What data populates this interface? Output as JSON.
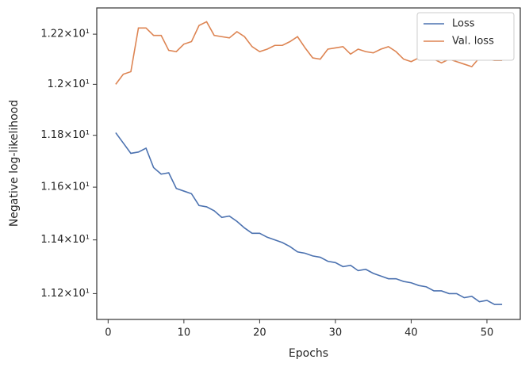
{
  "chart_data": {
    "type": "line",
    "xlabel": "Epochs",
    "ylabel": "Negative log-likelihood",
    "x": [
      1,
      2,
      3,
      4,
      5,
      6,
      7,
      8,
      9,
      10,
      11,
      12,
      13,
      14,
      15,
      16,
      17,
      18,
      19,
      20,
      21,
      22,
      23,
      24,
      25,
      26,
      27,
      28,
      29,
      30,
      31,
      32,
      33,
      34,
      35,
      36,
      37,
      38,
      39,
      40,
      41,
      42,
      43,
      44,
      45,
      46,
      47,
      48,
      49,
      50,
      51,
      52
    ],
    "series": [
      {
        "name": "Loss",
        "color": "#4c72b0",
        "values": [
          11.81,
          11.77,
          11.73,
          11.735,
          11.75,
          11.675,
          11.65,
          11.655,
          11.595,
          11.585,
          11.575,
          11.53,
          11.525,
          11.51,
          11.485,
          11.49,
          11.47,
          11.445,
          11.425,
          11.425,
          11.41,
          11.4,
          11.39,
          11.375,
          11.355,
          11.35,
          11.34,
          11.335,
          11.32,
          11.315,
          11.3,
          11.305,
          11.285,
          11.29,
          11.275,
          11.265,
          11.255,
          11.255,
          11.245,
          11.24,
          11.23,
          11.225,
          11.21,
          11.21,
          11.2,
          11.2,
          11.185,
          11.19,
          11.17,
          11.175,
          11.16,
          11.16
        ]
      },
      {
        "name": "Val. loss",
        "color": "#dd8452",
        "values": [
          12.0,
          12.04,
          12.05,
          12.225,
          12.225,
          12.195,
          12.195,
          12.135,
          12.13,
          12.16,
          12.17,
          12.235,
          12.25,
          12.195,
          12.19,
          12.185,
          12.21,
          12.19,
          12.15,
          12.13,
          12.14,
          12.155,
          12.155,
          12.17,
          12.19,
          12.145,
          12.105,
          12.1,
          12.14,
          12.145,
          12.15,
          12.12,
          12.14,
          12.13,
          12.125,
          12.14,
          12.15,
          12.13,
          12.1,
          12.09,
          12.105,
          12.105,
          12.1,
          12.085,
          12.1,
          12.09,
          12.08,
          12.07,
          12.105,
          12.1,
          12.095,
          12.095
        ]
      }
    ],
    "xlim": [
      -1.5,
      54.4
    ],
    "xticks": [
      0,
      10,
      20,
      30,
      40,
      50
    ],
    "ylim": [
      11.105,
      12.306
    ],
    "log_y": true,
    "yticks": [
      {
        "value": 11.2,
        "label": "1.12×10¹"
      },
      {
        "value": 11.4,
        "label": "1.14×10¹"
      },
      {
        "value": 11.6,
        "label": "1.16×10¹"
      },
      {
        "value": 11.8,
        "label": "1.18×10¹"
      },
      {
        "value": 12,
        "label": "1.2×10¹"
      },
      {
        "value": 12.2,
        "label": "1.22×10¹"
      }
    ],
    "legend": "upper right"
  }
}
